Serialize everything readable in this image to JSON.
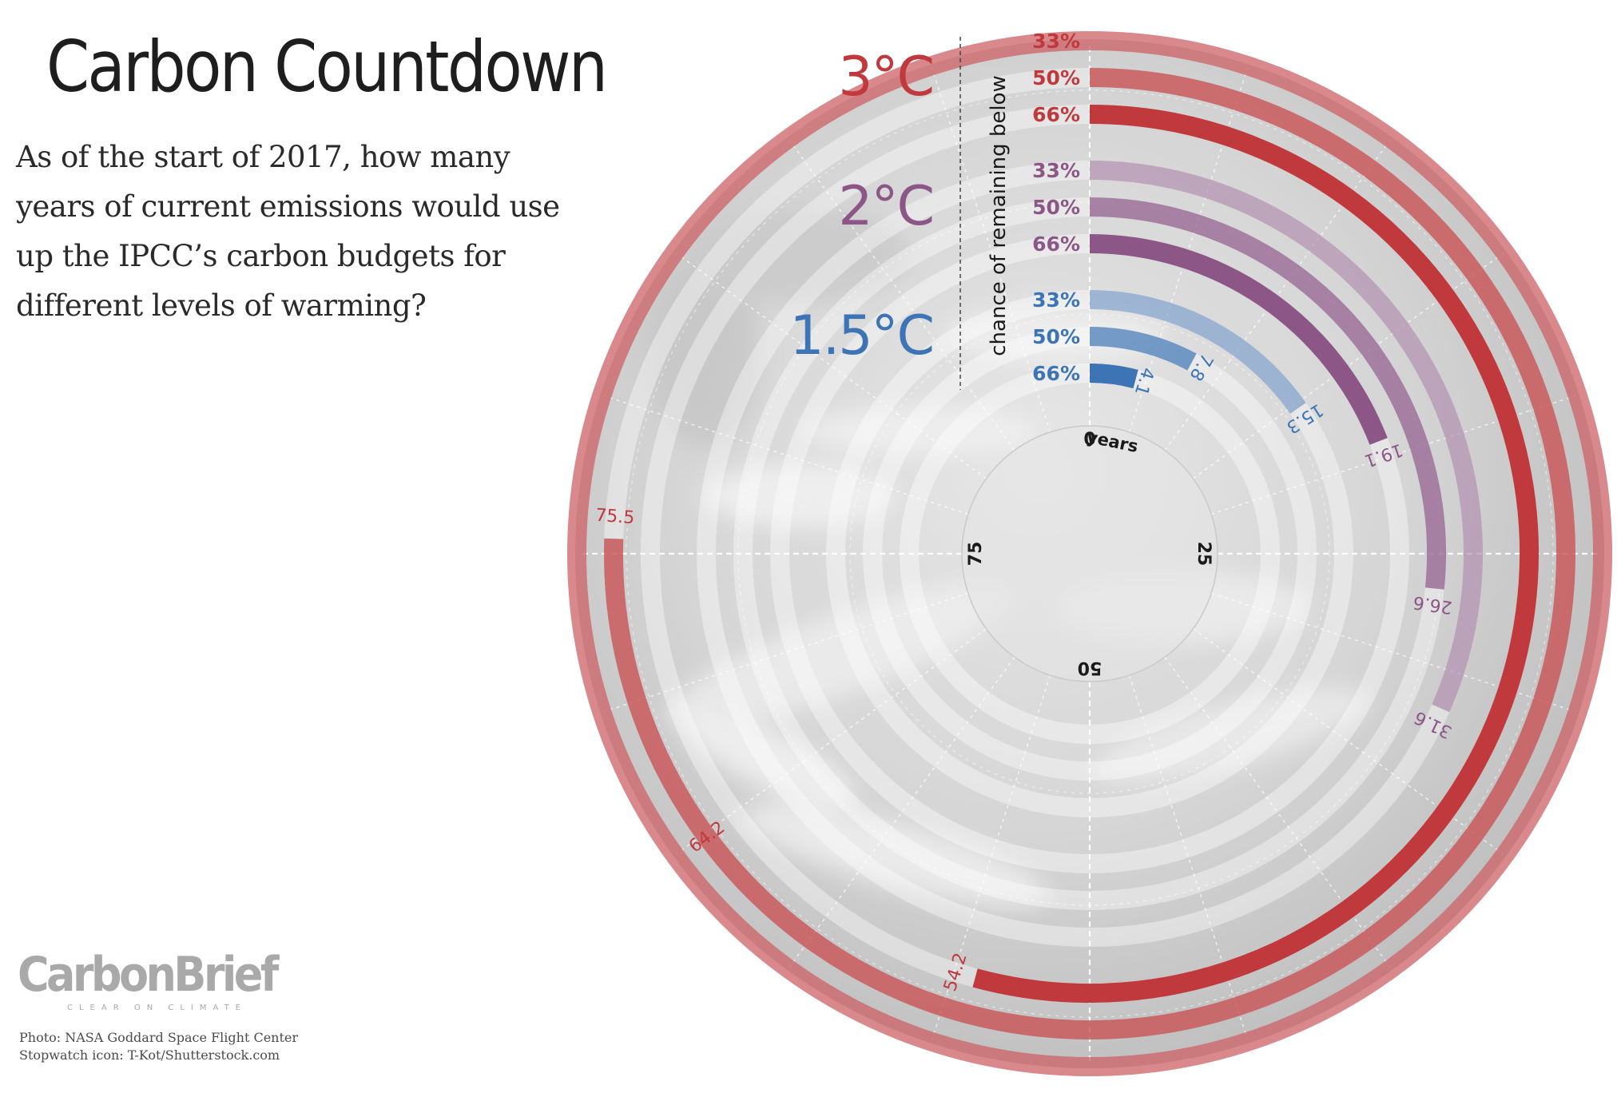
{
  "header": {
    "title": "Carbon Countdown",
    "subtitle": "As of the start of 2017, how many years of current emissions would use up the IPCC’s carbon budgets for different levels of warming?"
  },
  "icons": {
    "title_icon": "stopwatch-icon"
  },
  "logo": {
    "name": "CarbonBrief",
    "tagline": "CLEAR ON CLIMATE"
  },
  "credits": [
    "Photo: NASA Goddard Space Flight Center",
    "Stopwatch icon: T-Kot/Shutterstock.com"
  ],
  "chart_data": {
    "type": "radial-bar",
    "axis_label": "chance of remaining below",
    "center_label": "years",
    "axis_ticks": [
      "0",
      "25",
      "50",
      "75"
    ],
    "axis_max": 100,
    "colors": {
      "3°C": "#c0393d",
      "2°C": "#8c5687",
      "1.5°C": "#3d74b5"
    },
    "groups": [
      {
        "name": "3°C",
        "bars": [
          {
            "chance": "33%",
            "years": null
          },
          {
            "chance": "50%",
            "years": 75.5
          },
          {
            "chance": "66%",
            "years": 54.2
          }
        ]
      },
      {
        "name": "2°C",
        "bars": [
          {
            "chance": "33%",
            "years": 31.6
          },
          {
            "chance": "50%",
            "years": 26.6
          },
          {
            "chance": "66%",
            "years": 19.1
          }
        ]
      },
      {
        "name": "1.5°C",
        "bars": [
          {
            "chance": "33%",
            "years": 15.3
          },
          {
            "chance": "50%",
            "years": 7.8
          },
          {
            "chance": "66%",
            "years": 4.1
          }
        ]
      }
    ],
    "extra_labels": [
      {
        "group": "3°C",
        "text": "64.2"
      }
    ]
  }
}
